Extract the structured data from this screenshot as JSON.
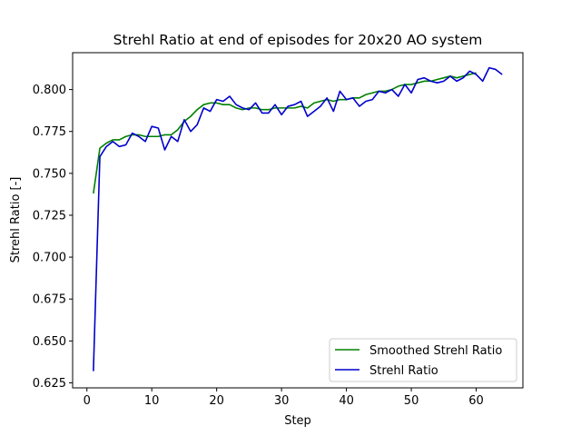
{
  "chart_data": {
    "type": "line",
    "title": "Strehl Ratio at end of episodes for 20x20 AO system",
    "xlabel": "Step",
    "ylabel": "Strehl Ratio [-]",
    "xlim": [
      -2.2,
      67.2
    ],
    "ylim": [
      0.622,
      0.822
    ],
    "xticks": [
      0,
      10,
      20,
      30,
      40,
      50,
      60
    ],
    "yticks": [
      0.625,
      0.65,
      0.675,
      0.7,
      0.725,
      0.75,
      0.775,
      0.8
    ],
    "ytick_labels": [
      "0.625",
      "0.650",
      "0.675",
      "0.700",
      "0.725",
      "0.750",
      "0.775",
      "0.800"
    ],
    "grid": false,
    "legend_position": "lower-right",
    "series": [
      {
        "name": "Smoothed Strehl Ratio",
        "color": "#008000",
        "x": [
          1,
          2,
          3,
          4,
          5,
          6,
          7,
          8,
          9,
          10,
          11,
          12,
          13,
          14,
          15,
          16,
          17,
          18,
          19,
          20,
          21,
          22,
          23,
          24,
          25,
          26,
          27,
          28,
          29,
          30,
          31,
          32,
          33,
          34,
          35,
          36,
          37,
          38,
          39,
          40,
          41,
          42,
          43,
          44,
          45,
          46,
          47,
          48,
          49,
          50,
          51,
          52,
          53,
          54,
          55,
          56,
          57,
          58,
          59,
          60
        ],
        "y": [
          0.738,
          0.765,
          0.768,
          0.77,
          0.77,
          0.772,
          0.773,
          0.773,
          0.772,
          0.772,
          0.772,
          0.773,
          0.773,
          0.776,
          0.781,
          0.784,
          0.788,
          0.791,
          0.792,
          0.792,
          0.791,
          0.791,
          0.789,
          0.788,
          0.789,
          0.789,
          0.788,
          0.788,
          0.789,
          0.789,
          0.789,
          0.789,
          0.79,
          0.789,
          0.792,
          0.793,
          0.794,
          0.793,
          0.794,
          0.794,
          0.795,
          0.795,
          0.797,
          0.798,
          0.799,
          0.799,
          0.8,
          0.802,
          0.803,
          0.803,
          0.804,
          0.805,
          0.805,
          0.806,
          0.807,
          0.808,
          0.807,
          0.808,
          0.809,
          0.81
        ]
      },
      {
        "name": "Strehl Ratio",
        "color": "#0000cc",
        "x": [
          1,
          2,
          3,
          4,
          5,
          6,
          7,
          8,
          9,
          10,
          11,
          12,
          13,
          14,
          15,
          16,
          17,
          18,
          19,
          20,
          21,
          22,
          23,
          24,
          25,
          26,
          27,
          28,
          29,
          30,
          31,
          32,
          33,
          34,
          35,
          36,
          37,
          38,
          39,
          40,
          41,
          42,
          43,
          44,
          45,
          46,
          47,
          48,
          49,
          50,
          51,
          52,
          53,
          54,
          55,
          56,
          57,
          58,
          59,
          60,
          61,
          62,
          63,
          64
        ],
        "y": [
          0.632,
          0.76,
          0.766,
          0.769,
          0.766,
          0.767,
          0.774,
          0.772,
          0.769,
          0.778,
          0.777,
          0.764,
          0.772,
          0.769,
          0.782,
          0.775,
          0.779,
          0.789,
          0.787,
          0.794,
          0.793,
          0.796,
          0.791,
          0.789,
          0.788,
          0.792,
          0.786,
          0.786,
          0.791,
          0.785,
          0.79,
          0.791,
          0.793,
          0.784,
          0.787,
          0.79,
          0.795,
          0.787,
          0.799,
          0.794,
          0.795,
          0.79,
          0.793,
          0.794,
          0.799,
          0.798,
          0.8,
          0.796,
          0.803,
          0.798,
          0.806,
          0.807,
          0.805,
          0.804,
          0.805,
          0.808,
          0.805,
          0.807,
          0.811,
          0.809,
          0.805,
          0.813,
          0.812,
          0.809
        ]
      }
    ]
  }
}
